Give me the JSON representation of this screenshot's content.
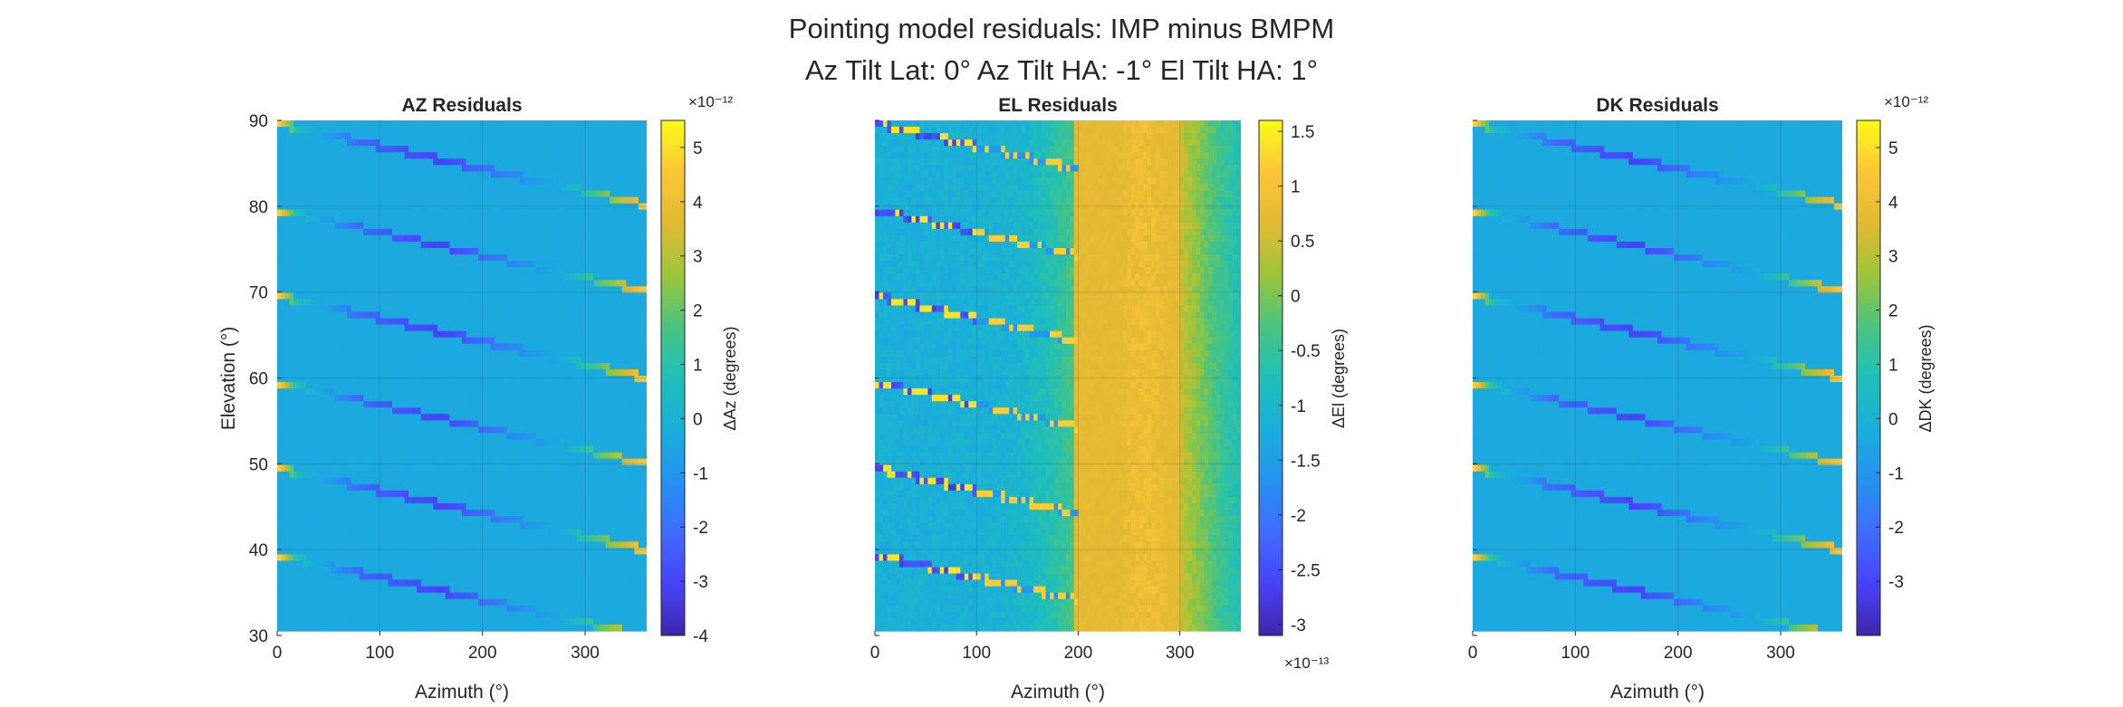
{
  "figure": {
    "title_line1": "Pointing model residuals: IMP minus BMPM",
    "title_line2": "Az Tilt Lat: 0° Az Tilt HA: -1° El Tilt HA: 1°"
  },
  "chart_data": [
    {
      "type": "heatmap",
      "title": "AZ Residuals",
      "xlabel": "Azimuth (°)",
      "ylabel": "Elevation (°)",
      "xlim": [
        0,
        360
      ],
      "ylim": [
        30,
        90
      ],
      "xticks": [
        "0",
        "100",
        "200",
        "300"
      ],
      "yticks": [
        "30",
        "40",
        "50",
        "60",
        "70",
        "80",
        "90"
      ],
      "grid": true,
      "pattern": "diagonal-stripes",
      "stripe_start_elevations": [
        90,
        80,
        70,
        60,
        50,
        40
      ],
      "colorbar": {
        "label": "ΔAz (degrees)",
        "exponent": "×10⁻¹²",
        "range": [
          -4.0,
          5.5
        ],
        "ticks": [
          "5",
          "4",
          "3",
          "2",
          "1",
          "0",
          "-1",
          "-2",
          "-3",
          "-4"
        ],
        "tick_values": [
          5,
          4,
          3,
          2,
          1,
          0,
          -1,
          -2,
          -3,
          -4
        ]
      }
    },
    {
      "type": "heatmap",
      "title": "EL Residuals",
      "xlabel": "Azimuth (°)",
      "xlim": [
        0,
        360
      ],
      "ylim": [
        30,
        90
      ],
      "xticks": [
        "0",
        "100",
        "200",
        "300"
      ],
      "grid": true,
      "pattern": "azimuth-gradient-with-stripes",
      "stripe_start_elevations": [
        90,
        80,
        70,
        60,
        50,
        40
      ],
      "colorbar": {
        "label": "ΔEl (degrees)",
        "exponent": "×10⁻¹³",
        "range": [
          -3.1,
          1.6
        ],
        "ticks": [
          "1.5",
          "1",
          "0.5",
          "0",
          "-0.5",
          "-1",
          "-1.5",
          "-2",
          "-2.5",
          "-3"
        ],
        "tick_values": [
          1.5,
          1,
          0.5,
          0,
          -0.5,
          -1,
          -1.5,
          -2,
          -2.5,
          -3
        ]
      }
    },
    {
      "type": "heatmap",
      "title": "DK Residuals",
      "xlabel": "Azimuth (°)",
      "xlim": [
        0,
        360
      ],
      "ylim": [
        30,
        90
      ],
      "xticks": [
        "0",
        "100",
        "200",
        "300"
      ],
      "grid": true,
      "pattern": "diagonal-stripes",
      "stripe_start_elevations": [
        90,
        80,
        70,
        60,
        50,
        40
      ],
      "colorbar": {
        "label": "ΔDK (degrees)",
        "exponent": "×10⁻¹²",
        "range": [
          -4.0,
          5.5
        ],
        "ticks": [
          "5",
          "4",
          "3",
          "2",
          "1",
          "0",
          "-1",
          "-2",
          "-3"
        ],
        "tick_values": [
          5,
          4,
          3,
          2,
          1,
          0,
          -1,
          -2,
          -3
        ]
      }
    }
  ]
}
